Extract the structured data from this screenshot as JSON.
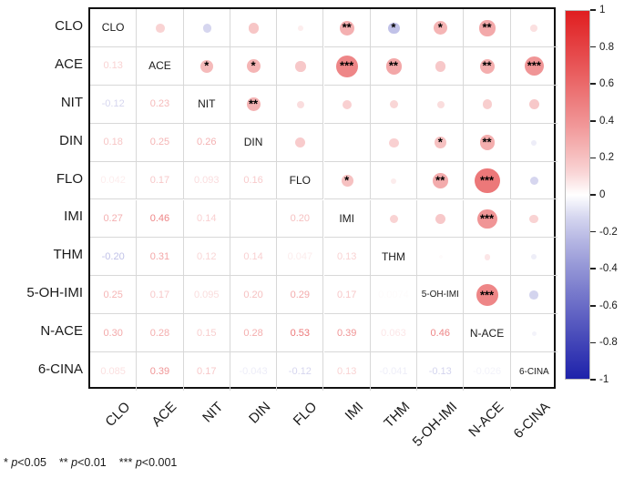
{
  "chart_data": {
    "type": "heatmap",
    "subtype": "correlation-matrix-mixed",
    "title": "",
    "variables": [
      "CLO",
      "ACE",
      "NIT",
      "DIN",
      "FLO",
      "IMI",
      "THM",
      "5-OH-IMI",
      "N-ACE",
      "6-CINA"
    ],
    "lower_triangle_values": [
      [],
      [
        "0.13"
      ],
      [
        "-0.12",
        "0.23"
      ],
      [
        "0.18",
        "0.25",
        "0.26"
      ],
      [
        "0.042",
        "0.17",
        "0.093",
        "0.16"
      ],
      [
        "0.27",
        "0.46",
        "0.14",
        "",
        "0.20"
      ],
      [
        "-0.20",
        "0.31",
        "0.12",
        "0.14",
        "0.047",
        "0.13"
      ],
      [
        "0.25",
        "0.17",
        "0.095",
        "0.20",
        "0.29",
        "0.17",
        "0.0074"
      ],
      [
        "0.30",
        "0.28",
        "0.15",
        "0.28",
        "0.53",
        "0.39",
        "0.063",
        "0.46"
      ],
      [
        "0.085",
        "0.39",
        "0.17",
        "-0.043",
        "-0.12",
        "0.13",
        "-0.041",
        "-0.13",
        "-0.026"
      ]
    ],
    "significance_stars": [
      [],
      [
        ""
      ],
      [
        "",
        "*"
      ],
      [
        "",
        "*",
        "**"
      ],
      [
        "",
        "",
        "",
        ""
      ],
      [
        "**",
        "***",
        "",
        "",
        "*"
      ],
      [
        "*",
        "**",
        "",
        "",
        "",
        ""
      ],
      [
        "*",
        "",
        "",
        "*",
        "**",
        "",
        ""
      ],
      [
        "**",
        "**",
        "",
        "**",
        "***",
        "***",
        "",
        "***"
      ],
      [
        "",
        "***",
        "",
        "",
        "",
        "",
        "",
        "",
        ""
      ]
    ],
    "colorbar": {
      "ticks": [
        "1",
        "0.8",
        "0.6",
        "0.4",
        "0.2",
        "0",
        "-0.2",
        "-0.4",
        "-0.6",
        "-0.8",
        "-1"
      ],
      "max": 1,
      "min": -1
    },
    "legend_note": {
      "items": [
        {
          "stars": "*",
          "p": "p",
          "threshold": "<0.05"
        },
        {
          "stars": "**",
          "p": "p",
          "threshold": "<0.01"
        },
        {
          "stars": "***",
          "p": "p",
          "threshold": "<0.001"
        }
      ]
    },
    "colors": {
      "positive_max": "#e01e20",
      "negative_max": "#1e22aa",
      "zero": "#ffffff",
      "grid": "#d8d8d8",
      "frame": "#111111"
    },
    "layout": {
      "legend_position": "right",
      "grid": true,
      "diagonal": "variable-names"
    }
  }
}
